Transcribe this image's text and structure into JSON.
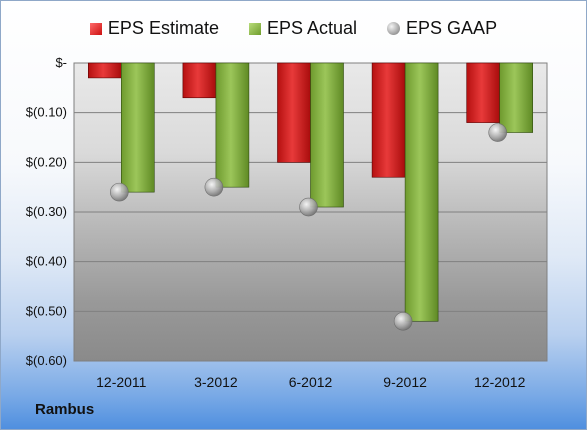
{
  "legend": {
    "estimate": "EPS Estimate",
    "actual": "EPS Actual",
    "gaap": "EPS GAAP"
  },
  "company": "Rambus",
  "colors": {
    "estimate": "#cc1a1a",
    "actual": "#79a637",
    "gaap": "#a8a8a8"
  },
  "chart_data": {
    "type": "bar",
    "categories": [
      "12-2011",
      "3-2012",
      "6-2012",
      "9-2012",
      "12-2012"
    ],
    "series": [
      {
        "name": "EPS Estimate",
        "values": [
          -0.03,
          -0.07,
          -0.2,
          -0.23,
          -0.12
        ]
      },
      {
        "name": "EPS Actual",
        "values": [
          -0.26,
          -0.25,
          -0.29,
          -0.52,
          -0.14
        ]
      },
      {
        "name": "EPS GAAP",
        "values": [
          -0.26,
          -0.25,
          -0.29,
          -0.52,
          -0.14
        ]
      }
    ],
    "yticks": [
      0,
      -0.1,
      -0.2,
      -0.3,
      -0.4,
      -0.5,
      -0.6
    ],
    "ytick_labels": [
      "$-",
      "$(0.10)",
      "$(0.20)",
      "$(0.30)",
      "$(0.40)",
      "$(0.50)",
      "$(0.60)"
    ],
    "ylim": [
      -0.6,
      0
    ],
    "grid": true,
    "legend_position": "top"
  }
}
